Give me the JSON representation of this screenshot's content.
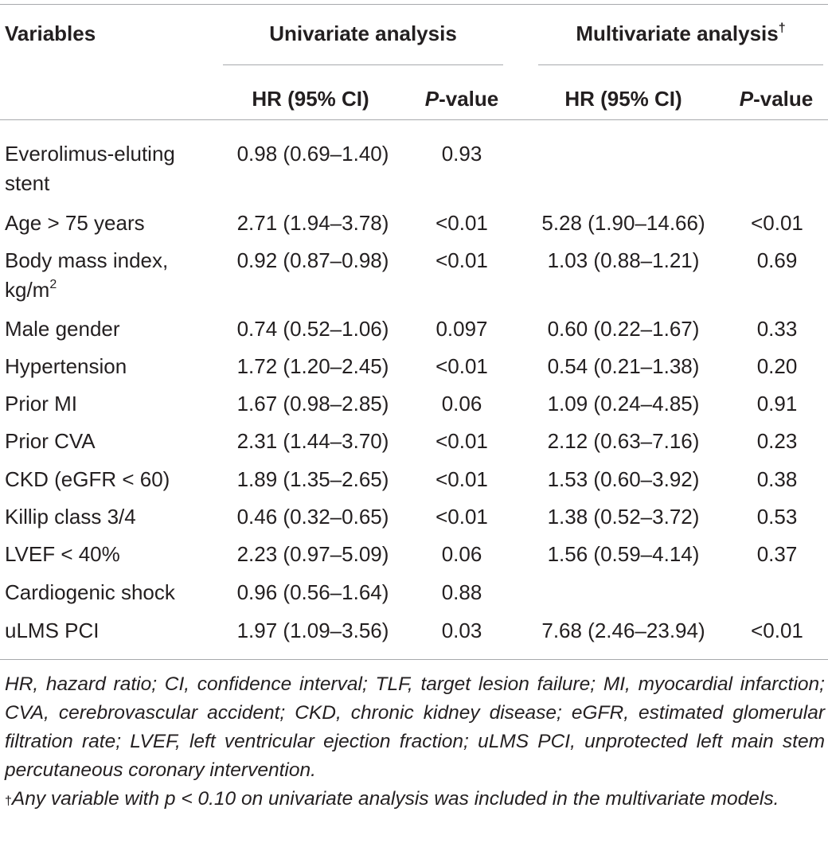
{
  "table": {
    "header": {
      "variables": "Variables",
      "univariate": "Univariate analysis",
      "multivariate": "Multivariate analysis",
      "multivariate_mark": "†",
      "hr": "HR (95% CI)",
      "p_italic": "P",
      "p_rest": "-value"
    },
    "rows": [
      {
        "line1": "Everolimus-eluting",
        "line2": "stent",
        "uni_hr": "0.98 (0.69–1.40)",
        "uni_p": "0.93",
        "multi_hr": "",
        "multi_p": ""
      },
      {
        "line1": "Age > 75 years",
        "uni_hr": "2.71 (1.94–3.78)",
        "uni_p": "<0.01",
        "multi_hr": "5.28 (1.90–14.66)",
        "multi_p": "<0.01"
      },
      {
        "line1": "Body mass index,",
        "line2": "kg/m",
        "line2_sup": "2",
        "uni_hr": "0.92 (0.87–0.98)",
        "uni_p": "<0.01",
        "multi_hr": "1.03 (0.88–1.21)",
        "multi_p": "0.69"
      },
      {
        "line1": "Male gender",
        "uni_hr": "0.74 (0.52–1.06)",
        "uni_p": "0.097",
        "multi_hr": "0.60 (0.22–1.67)",
        "multi_p": "0.33"
      },
      {
        "line1": "Hypertension",
        "uni_hr": "1.72 (1.20–2.45)",
        "uni_p": "<0.01",
        "multi_hr": "0.54 (0.21–1.38)",
        "multi_p": "0.20"
      },
      {
        "line1": "Prior MI",
        "uni_hr": "1.67 (0.98–2.85)",
        "uni_p": "0.06",
        "multi_hr": "1.09 (0.24–4.85)",
        "multi_p": "0.91"
      },
      {
        "line1": "Prior CVA",
        "uni_hr": "2.31 (1.44–3.70)",
        "uni_p": "<0.01",
        "multi_hr": "2.12 (0.63–7.16)",
        "multi_p": "0.23"
      },
      {
        "line1": "CKD (eGFR < 60)",
        "uni_hr": "1.89 (1.35–2.65)",
        "uni_p": "<0.01",
        "multi_hr": "1.53 (0.60–3.92)",
        "multi_p": "0.38"
      },
      {
        "line1": "Killip class 3/4",
        "uni_hr": "0.46 (0.32–0.65)",
        "uni_p": "<0.01",
        "multi_hr": "1.38 (0.52–3.72)",
        "multi_p": "0.53"
      },
      {
        "line1": "LVEF < 40%",
        "uni_hr": "2.23 (0.97–5.09)",
        "uni_p": "0.06",
        "multi_hr": "1.56 (0.59–4.14)",
        "multi_p": "0.37"
      },
      {
        "line1": "Cardiogenic shock",
        "uni_hr": "0.96 (0.56–1.64)",
        "uni_p": "0.88",
        "multi_hr": "",
        "multi_p": ""
      },
      {
        "line1": "uLMS PCI",
        "uni_hr": "1.97 (1.09–3.56)",
        "uni_p": "0.03",
        "multi_hr": "7.68 (2.46–23.94)",
        "multi_p": "<0.01"
      }
    ]
  },
  "footnotes": {
    "abbreviations": "HR, hazard ratio; CI, confidence interval; TLF, target lesion failure; MI, myocardial infarction; CVA, cerebrovascular accident; CKD, chronic kidney disease; eGFR, estimated glomerular filtration rate; LVEF, left ventricular ejection fraction; uLMS PCI, unprotected left main stem percutaneous coronary intervention.",
    "dagger_mark": "†",
    "dagger_text": "Any variable with p < 0.10 on univariate analysis was included in the multivariate models."
  }
}
